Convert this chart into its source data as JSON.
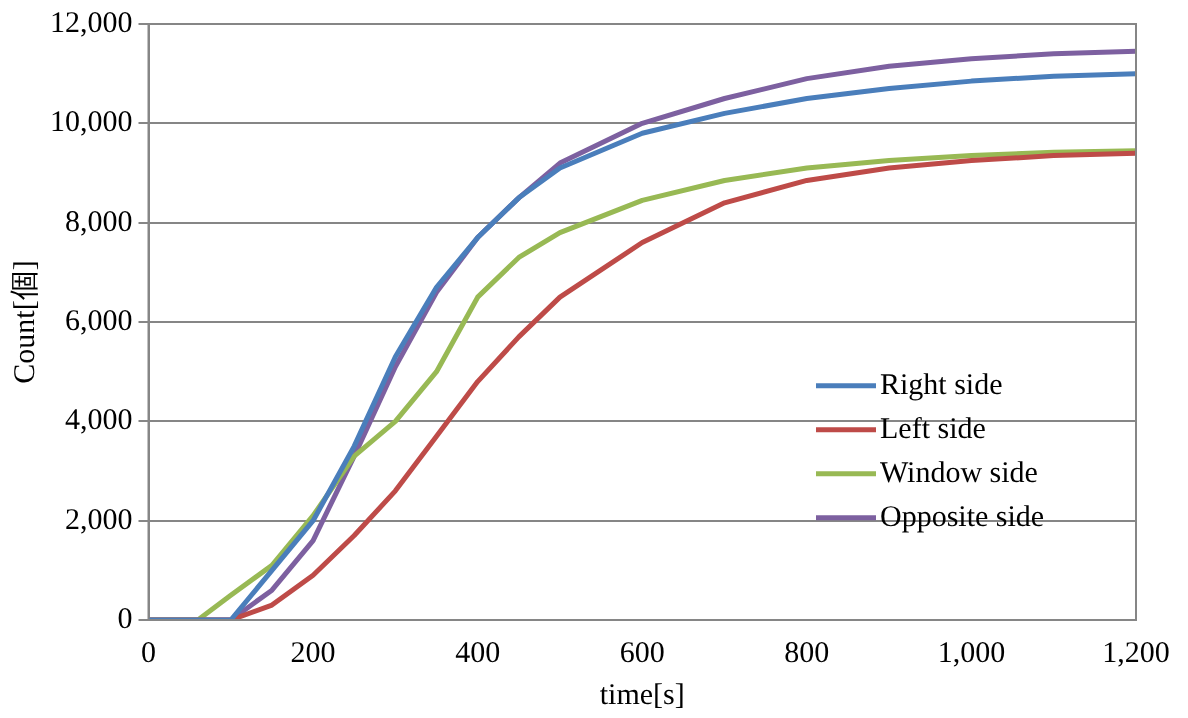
{
  "chart_data": {
    "type": "line",
    "xlabel": "time[s]",
    "ylabel": "Count[個]",
    "x": [
      0,
      60,
      100,
      150,
      200,
      250,
      300,
      350,
      400,
      450,
      500,
      600,
      700,
      800,
      900,
      1000,
      1100,
      1200
    ],
    "xlim": [
      0,
      1200
    ],
    "xticks": [
      0,
      200,
      400,
      600,
      800,
      {
        "value": 1000,
        "label": "1,000"
      },
      {
        "value": 1200,
        "label": "1,200"
      }
    ],
    "ylim": [
      0,
      12000
    ],
    "yticks": [
      0,
      {
        "value": 2000,
        "label": "2,000"
      },
      {
        "value": 4000,
        "label": "4,000"
      },
      {
        "value": 6000,
        "label": "6,000"
      },
      {
        "value": 8000,
        "label": "8,000"
      },
      {
        "value": 10000,
        "label": "10,000"
      },
      {
        "value": 12000,
        "label": "12,000"
      }
    ],
    "grid": "y",
    "legend": "bottom right",
    "marker": "none",
    "line_style": "solid",
    "series": [
      {
        "name": "Right side",
        "color": "#4a7ebb",
        "values": [
          0,
          0,
          0,
          1000,
          2000,
          3500,
          5300,
          6700,
          7700,
          8500,
          9100,
          9800,
          10200,
          10500,
          10700,
          10850,
          10950,
          11000
        ]
      },
      {
        "name": "Left side",
        "color": "#be4b48",
        "values": [
          0,
          0,
          0,
          300,
          900,
          1700,
          2600,
          3700,
          4800,
          5700,
          6500,
          7600,
          8400,
          8850,
          9100,
          9250,
          9350,
          9400
        ]
      },
      {
        "name": "Window side",
        "color": "#98b954",
        "values": [
          0,
          0,
          500,
          1100,
          2100,
          3300,
          4000,
          5000,
          6500,
          7300,
          7800,
          8450,
          8850,
          9100,
          9250,
          9350,
          9420,
          9450
        ]
      },
      {
        "name": "Opposite side",
        "color": "#7d60a0",
        "values": [
          0,
          0,
          0,
          600,
          1600,
          3300,
          5100,
          6600,
          7700,
          8500,
          9200,
          10000,
          10500,
          10900,
          11150,
          11300,
          11400,
          11450
        ]
      }
    ]
  }
}
